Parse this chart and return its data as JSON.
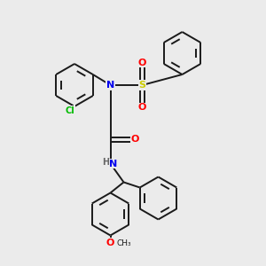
{
  "background_color": "#ebebeb",
  "bond_color": "#1a1a1a",
  "atom_colors": {
    "N": "#0000ee",
    "O": "#ff0000",
    "S": "#cccc00",
    "Cl": "#00bb00",
    "H": "#666666",
    "C": "#1a1a1a"
  },
  "bond_width": 1.4,
  "fig_size": [
    3.0,
    3.0
  ],
  "dpi": 100
}
